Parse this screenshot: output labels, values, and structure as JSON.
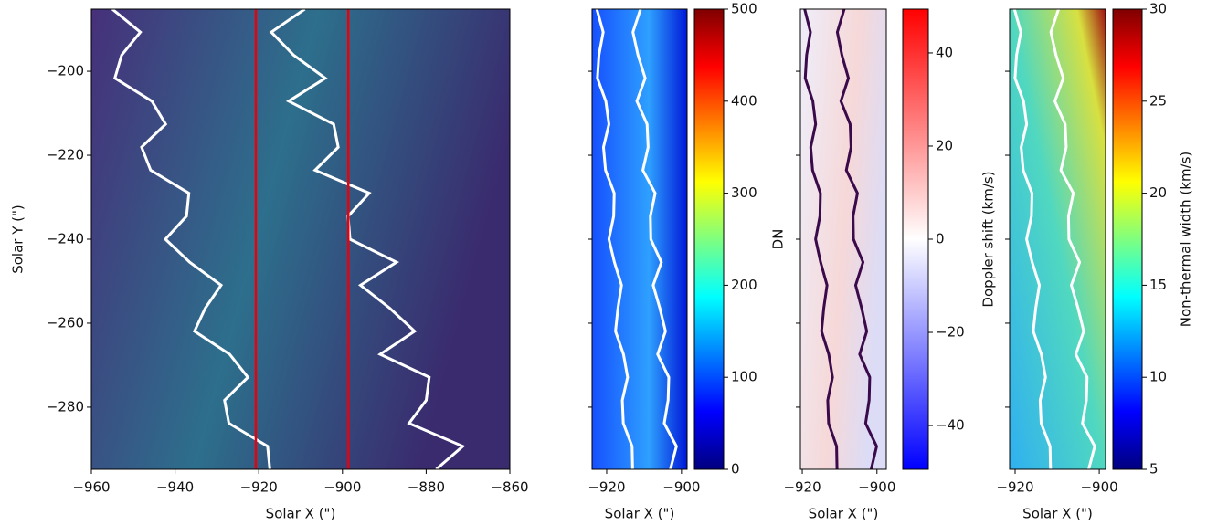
{
  "chart_data": [
    {
      "type": "image",
      "xlabel": "Solar X (\")",
      "ylabel": "Solar Y (\")",
      "xlim": [
        -960,
        -860
      ],
      "ylim": [
        -294.8,
        -185.2
      ],
      "xticks": [
        {
          "value": -960,
          "label": "−960"
        },
        {
          "value": -940,
          "label": "−940"
        },
        {
          "value": -920,
          "label": "−920"
        },
        {
          "value": -900,
          "label": "−900"
        },
        {
          "value": -880,
          "label": "−880"
        },
        {
          "value": -860,
          "label": "−860"
        }
      ],
      "yticks": [
        {
          "value": -200,
          "label": "−200"
        },
        {
          "value": -220,
          "label": "−220"
        },
        {
          "value": -240,
          "label": "−240"
        },
        {
          "value": -260,
          "label": "−260"
        },
        {
          "value": -280,
          "label": "−280"
        }
      ],
      "show_ytick_labels": true,
      "colormap": "viridis",
      "vlines": [
        {
          "x": -920.7,
          "color": "#e8000b"
        },
        {
          "x": -898.6,
          "color": "#e8000b"
        }
      ]
    },
    {
      "type": "image",
      "xlabel": "Solar X (\")",
      "xlim": [
        -923.9,
        -898.5
      ],
      "ylim": [
        -294.8,
        -185.2
      ],
      "xticks": [
        {
          "value": -920,
          "label": "−920"
        },
        {
          "value": -900,
          "label": "−900"
        }
      ],
      "yticks": [
        -200,
        -220,
        -240,
        -260,
        -280
      ],
      "show_ytick_labels": false,
      "colormap": "jet",
      "colorbar": {
        "label": "DN",
        "lim": [
          0,
          500
        ],
        "ticks": [
          0,
          100,
          200,
          300,
          400,
          500
        ],
        "colormap": "jet"
      }
    },
    {
      "type": "image",
      "xlabel": "Solar X (\")",
      "xlim": [
        -920.5,
        -897.5
      ],
      "ylim": [
        -294.8,
        -185.2
      ],
      "xticks": [
        {
          "value": -920,
          "label": "−920"
        },
        {
          "value": -900,
          "label": "−900"
        }
      ],
      "yticks": [
        -200,
        -220,
        -240,
        -260,
        -280
      ],
      "show_ytick_labels": false,
      "colormap": "bwr",
      "colorbar": {
        "label": "Doppler shift (km/s)",
        "lim": [
          -49.4,
          49.4
        ],
        "ticks": [
          {
            "value": -40,
            "label": "−40"
          },
          {
            "value": -20,
            "label": "−20"
          },
          0,
          20,
          40
        ],
        "colormap": "bwr"
      }
    },
    {
      "type": "image",
      "xlabel": "Solar X (\")",
      "xlim": [
        -921.3,
        -898.5
      ],
      "ylim": [
        -294.8,
        -185.2
      ],
      "xticks": [
        {
          "value": -920,
          "label": "−920"
        },
        {
          "value": -900,
          "label": "−900"
        }
      ],
      "yticks": [
        -200,
        -220,
        -240,
        -260,
        -280
      ],
      "show_ytick_labels": false,
      "colormap": "jet",
      "colorbar": {
        "label": "Non-thermal width (km/s)",
        "lim": [
          5,
          30
        ],
        "ticks": [
          5,
          10,
          15,
          20,
          25,
          30
        ],
        "colormap": "jet"
      }
    }
  ]
}
